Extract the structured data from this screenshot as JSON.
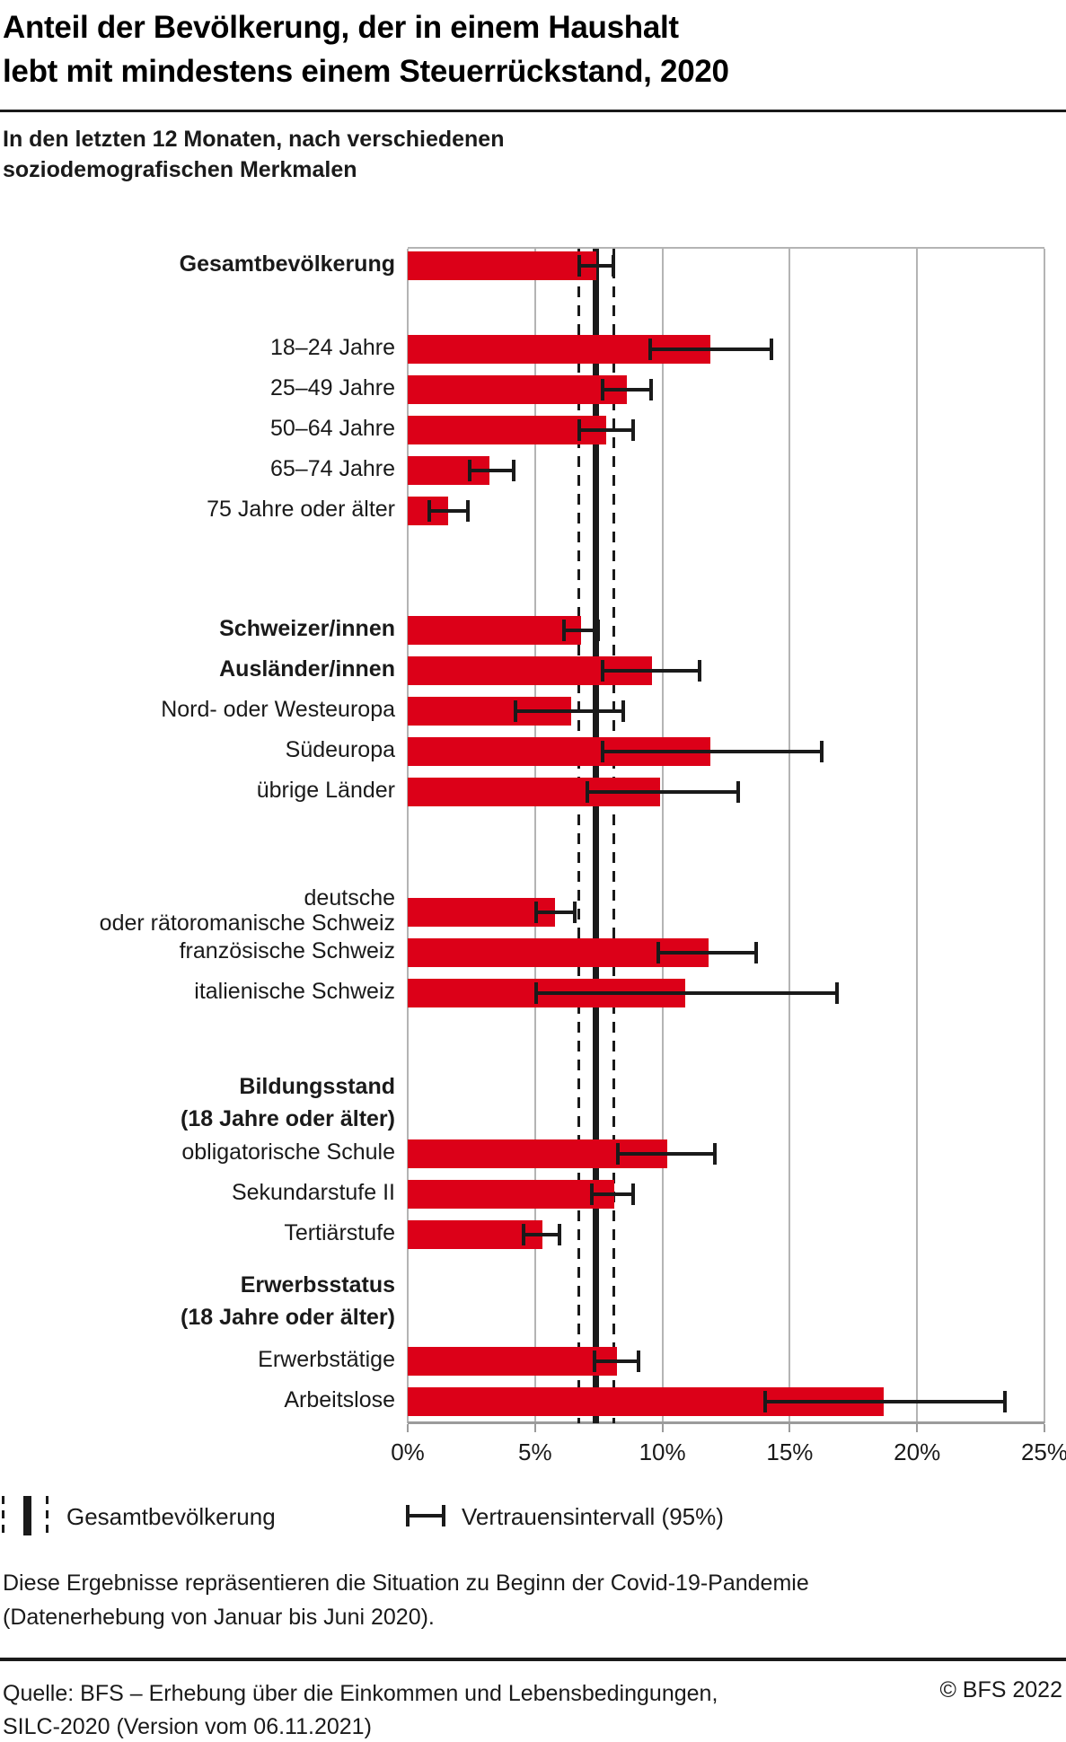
{
  "header": {
    "title_line1": "Anteil der Bevölkerung, der in einem Haushalt",
    "title_line2": "lebt mit mindestens einem Steuerrückstand, 2020",
    "subtitle_line1": "In den letzten 12 Monaten, nach verschiedenen",
    "subtitle_line2": "soziodemografischen Merkmalen"
  },
  "chart_data": {
    "type": "bar",
    "orientation": "horizontal",
    "unit": "%",
    "xlim": [
      0,
      25
    ],
    "x_ticks": [
      "0%",
      "5%",
      "10%",
      "15%",
      "20%",
      "25%"
    ],
    "grid": true,
    "reference": {
      "label": "Gesamtbevölkerung",
      "value": 7.4,
      "ci": [
        6.7,
        8.1
      ]
    },
    "groups": [
      {
        "rows": [
          {
            "label": "Gesamtbevölkerung",
            "bold": true,
            "value": 7.4,
            "ci": [
              6.7,
              8.1
            ]
          }
        ]
      },
      {
        "rows": [
          {
            "label": "18–24 Jahre",
            "value": 11.9,
            "ci": [
              9.5,
              14.3
            ]
          },
          {
            "label": "25–49 Jahre",
            "value": 8.6,
            "ci": [
              7.6,
              9.6
            ]
          },
          {
            "label": "50–64 Jahre",
            "value": 7.8,
            "ci": [
              6.7,
              8.9
            ]
          },
          {
            "label": "65–74 Jahre",
            "value": 3.2,
            "ci": [
              2.4,
              4.2
            ]
          },
          {
            "label": "75 Jahre oder älter",
            "value": 1.6,
            "ci": [
              0.8,
              2.4
            ]
          }
        ]
      },
      {
        "rows": [
          {
            "label": "Schweizer/innen",
            "bold": true,
            "value": 6.8,
            "ci": [
              6.1,
              7.5
            ]
          },
          {
            "label": "Ausländer/innen",
            "bold": true,
            "value": 9.6,
            "ci": [
              7.6,
              11.5
            ]
          },
          {
            "label": "Nord- oder Westeuropa",
            "value": 6.4,
            "ci": [
              4.2,
              8.5
            ]
          },
          {
            "label": "Südeuropa",
            "value": 11.9,
            "ci": [
              7.6,
              16.3
            ]
          },
          {
            "label": "übrige Länder",
            "value": 9.9,
            "ci": [
              7.0,
              13.0
            ]
          }
        ]
      },
      {
        "rows": [
          {
            "label": [
              "deutsche",
              "oder rätoromanische Schweiz"
            ],
            "value": 5.8,
            "ci": [
              5.0,
              6.6
            ]
          },
          {
            "label": "französische Schweiz",
            "value": 11.8,
            "ci": [
              9.8,
              13.7
            ]
          },
          {
            "label": "italienische Schweiz",
            "value": 10.9,
            "ci": [
              5.0,
              16.9
            ]
          }
        ]
      },
      {
        "header": [
          "Bildungsstand",
          "(18 Jahre oder älter)"
        ],
        "rows": [
          {
            "label": "obligatorische Schule",
            "value": 10.2,
            "ci": [
              8.2,
              12.1
            ]
          },
          {
            "label": "Sekundarstufe II",
            "value": 8.1,
            "ci": [
              7.2,
              8.9
            ]
          },
          {
            "label": "Tertiärstufe",
            "value": 5.3,
            "ci": [
              4.5,
              6.0
            ]
          }
        ]
      },
      {
        "header": [
          "Erwerbsstatus",
          "(18 Jahre oder älter)"
        ],
        "rows": [
          {
            "label": "Erwerbstätige",
            "value": 8.2,
            "ci": [
              7.3,
              9.1
            ]
          },
          {
            "label": "Arbeitslose",
            "value": 18.7,
            "ci": [
              14.0,
              23.5
            ]
          }
        ]
      }
    ],
    "legend_position": "bottom"
  },
  "legend": {
    "items": [
      {
        "symbol": "reference-line",
        "label": "Gesamtbevölkerung"
      },
      {
        "symbol": "error-bar",
        "label": "Vertrauensintervall (95%)"
      }
    ]
  },
  "footnote": {
    "line1": "Diese Ergebnisse repräsentieren die Situation zu Beginn der Covid-19-Pandemie",
    "line2": "(Datenerhebung von Januar bis Juni 2020)."
  },
  "footer": {
    "source_line1": "Quelle: BFS – Erhebung über die Einkommen und Lebensbedingungen,",
    "source_line2": "SILC-2020 (Version vom 06.11.2021)",
    "copyright": "© BFS 2022"
  },
  "colors": {
    "bar": "#DC0018",
    "grid": "#B4B4B4",
    "axis": "#9B9B9B",
    "text": "#1A1A1A",
    "reference": "#1A1A1A"
  }
}
